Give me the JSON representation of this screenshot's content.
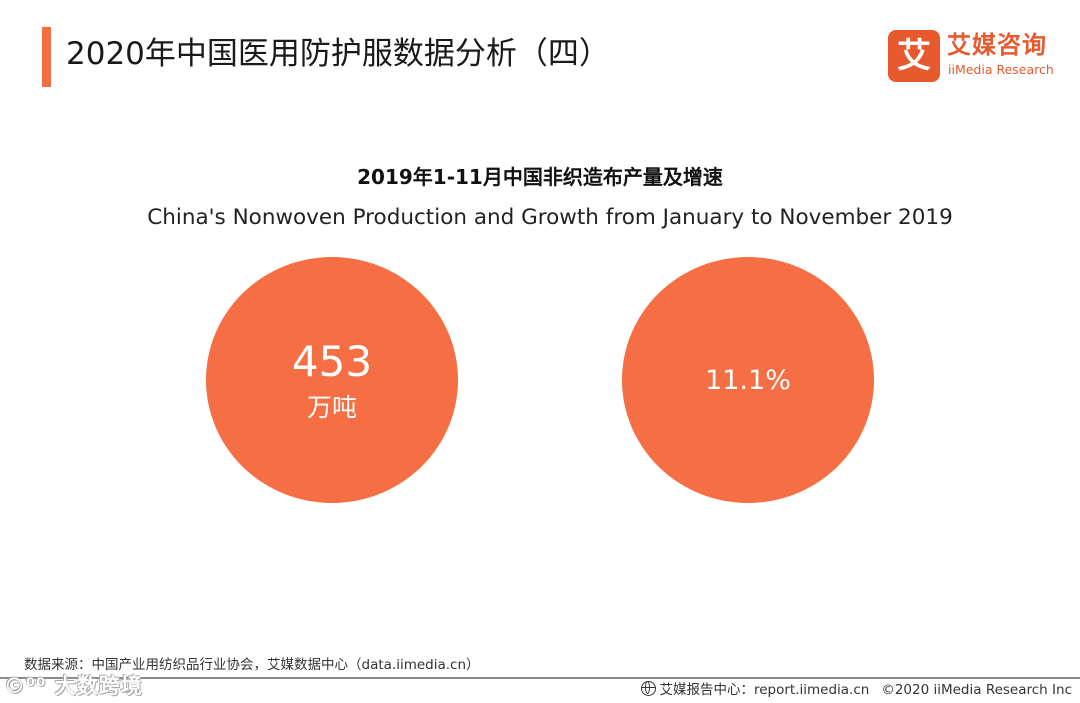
{
  "header": {
    "title": "2020年中国医用防护服数据分析（四）"
  },
  "logo": {
    "mark": "艾",
    "name_cn": "艾媒咨询",
    "name_en": "iiMedia Research"
  },
  "chart": {
    "title_cn": "2019年1-11月中国非织造布产量及增速",
    "title_en": "China's Nonwoven Production and Growth from January to November 2019"
  },
  "metrics": {
    "production_value": "453",
    "production_unit": "万吨",
    "growth_value": "11.1%"
  },
  "colors": {
    "accent": "#f36e3f",
    "circle": "#f66f44",
    "brand": "#e65a2d"
  },
  "footer": {
    "source": "数据来源：中国产业用纺织品行业协会，艾媒数据中心（data.iimedia.cn）",
    "watermark": "©⁰⁰ 大数跨境",
    "report_label": "艾媒报告中心：report.iimedia.cn",
    "copyright": "©2020  iiMedia Research  Inc",
    "globe_icon": "globe-icon"
  }
}
